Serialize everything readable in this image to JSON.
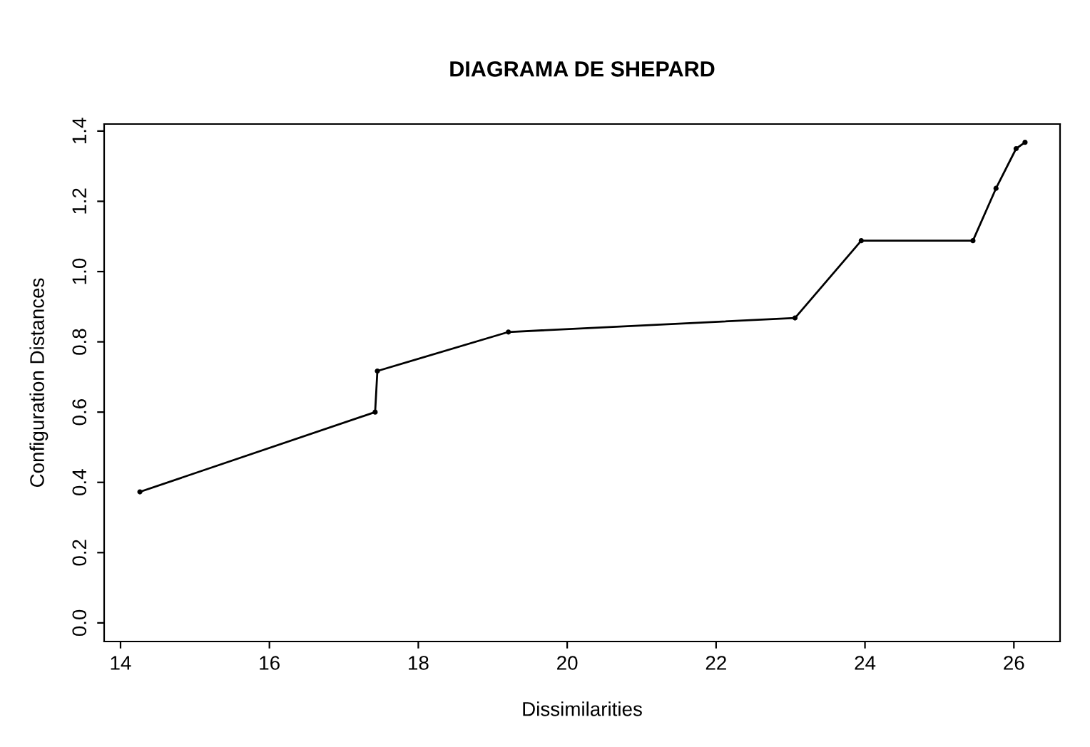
{
  "chart_data": {
    "type": "line",
    "title": "DIAGRAMA DE SHEPARD",
    "xlabel": "Dissimilarities",
    "ylabel": "Configuration Distances",
    "x": [
      14.26,
      17.42,
      17.45,
      19.21,
      23.06,
      23.95,
      25.45,
      25.76,
      26.03,
      26.15
    ],
    "series": [
      {
        "color": "#000000",
        "values": [
          0.373,
          0.6,
          0.717,
          0.828,
          0.868,
          1.088,
          1.088,
          1.237,
          1.35,
          1.368
        ]
      }
    ],
    "xlim": [
      13.78,
      26.62
    ],
    "ylim": [
      -0.053,
      1.42
    ],
    "xticks": [
      14,
      16,
      18,
      20,
      22,
      24,
      26
    ],
    "yticks": [
      {
        "value": 0,
        "label": "0.0"
      },
      0.2,
      0.4,
      0.6,
      0.8,
      {
        "value": 1,
        "label": "1.0"
      },
      1.2,
      1.4
    ],
    "grid": false,
    "marker": "circle",
    "line_style": "solid"
  }
}
